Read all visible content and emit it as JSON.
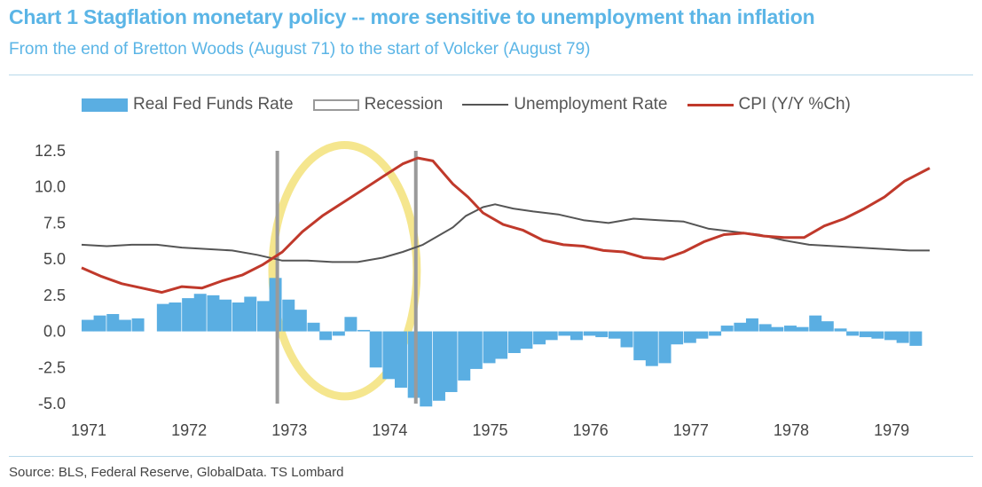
{
  "title": "Chart 1 Stagflation monetary policy -- more sensitive to unemployment than inflation",
  "subtitle": "From the end of Bretton Woods (August 71) to the start of Volcker (August 79)",
  "source": "Source: BLS, Federal Reserve, GlobalData. TS Lombard",
  "colors": {
    "title": "#5bb5e6",
    "real_fed_funds": "#5aaee2",
    "unemployment": "#555555",
    "cpi": "#c0392b",
    "recession": "#9a9a9a",
    "highlight": "#f3e27a"
  },
  "legend": [
    {
      "label": "Real Fed Funds Rate",
      "swatch": "bar"
    },
    {
      "label": "Recession",
      "swatch": "recession"
    },
    {
      "label": "Unemployment Rate",
      "swatch": "line"
    },
    {
      "label": "CPI (Y/Y %Ch)",
      "swatch": "line-red"
    }
  ],
  "chart_data": {
    "type": "bar+line",
    "xlim": [
      1971.0,
      1979.45
    ],
    "ylim": [
      -5.0,
      12.5
    ],
    "yticks": [
      "12.5",
      "10.0",
      "7.5",
      "5.0",
      "2.5",
      "0.0",
      "-2.5",
      "-5.0"
    ],
    "ytick_values": [
      12.5,
      10.0,
      7.5,
      5.0,
      2.5,
      0.0,
      -2.5,
      -5.0
    ],
    "xticks": [
      "1971",
      "1972",
      "1973",
      "1974",
      "1975",
      "1976",
      "1977",
      "1978",
      "1979"
    ],
    "xtick_values": [
      1971,
      1972,
      1973,
      1974,
      1975,
      1976,
      1977,
      1978,
      1979
    ],
    "recession_lines": [
      1972.95,
      1974.33
    ],
    "highlight_ellipse": {
      "x_center": 1973.62,
      "y_center": 4.2,
      "x_radius": 0.72,
      "y_radius": 8.7
    },
    "grid": false,
    "legend_position": "top",
    "series": [
      {
        "name": "Real Fed Funds Rate",
        "type": "bar",
        "bar_width": 0.12,
        "points": [
          [
            1971.0,
            0.8
          ],
          [
            1971.12,
            1.1
          ],
          [
            1971.25,
            1.2
          ],
          [
            1971.37,
            0.8
          ],
          [
            1971.5,
            0.9
          ],
          [
            1971.62,
            0.0
          ],
          [
            1971.75,
            1.9
          ],
          [
            1971.87,
            2.0
          ],
          [
            1972.0,
            2.3
          ],
          [
            1972.12,
            2.6
          ],
          [
            1972.25,
            2.5
          ],
          [
            1972.37,
            2.2
          ],
          [
            1972.5,
            2.0
          ],
          [
            1972.62,
            2.4
          ],
          [
            1972.75,
            2.1
          ],
          [
            1972.87,
            3.7
          ],
          [
            1973.0,
            2.2
          ],
          [
            1973.12,
            1.5
          ],
          [
            1973.25,
            0.6
          ],
          [
            1973.37,
            -0.6
          ],
          [
            1973.5,
            -0.3
          ],
          [
            1973.62,
            1.0
          ],
          [
            1973.75,
            0.1
          ],
          [
            1973.87,
            -2.5
          ],
          [
            1974.0,
            -3.3
          ],
          [
            1974.12,
            -3.9
          ],
          [
            1974.25,
            -4.6
          ],
          [
            1974.37,
            -5.2
          ],
          [
            1974.5,
            -4.8
          ],
          [
            1974.62,
            -4.2
          ],
          [
            1974.75,
            -3.4
          ],
          [
            1974.87,
            -2.6
          ],
          [
            1975.0,
            -2.2
          ],
          [
            1975.12,
            -1.9
          ],
          [
            1975.25,
            -1.5
          ],
          [
            1975.37,
            -1.2
          ],
          [
            1975.5,
            -0.9
          ],
          [
            1975.62,
            -0.6
          ],
          [
            1975.75,
            -0.3
          ],
          [
            1975.87,
            -0.6
          ],
          [
            1976.0,
            -0.3
          ],
          [
            1976.12,
            -0.4
          ],
          [
            1976.25,
            -0.5
          ],
          [
            1976.37,
            -1.1
          ],
          [
            1976.5,
            -2.0
          ],
          [
            1976.62,
            -2.4
          ],
          [
            1976.75,
            -2.2
          ],
          [
            1976.87,
            -0.9
          ],
          [
            1977.0,
            -0.8
          ],
          [
            1977.12,
            -0.5
          ],
          [
            1977.25,
            -0.3
          ],
          [
            1977.37,
            0.4
          ],
          [
            1977.5,
            0.6
          ],
          [
            1977.62,
            0.9
          ],
          [
            1977.75,
            0.5
          ],
          [
            1977.87,
            0.3
          ],
          [
            1978.0,
            0.4
          ],
          [
            1978.12,
            0.3
          ],
          [
            1978.25,
            1.1
          ],
          [
            1978.37,
            0.7
          ],
          [
            1978.5,
            0.2
          ],
          [
            1978.62,
            -0.3
          ],
          [
            1978.75,
            -0.4
          ],
          [
            1978.87,
            -0.5
          ],
          [
            1979.0,
            -0.6
          ],
          [
            1979.12,
            -0.8
          ],
          [
            1979.25,
            -1.0
          ]
        ]
      },
      {
        "name": "Unemployment Rate",
        "type": "line",
        "points": [
          [
            1971.0,
            6.0
          ],
          [
            1971.25,
            5.9
          ],
          [
            1971.5,
            6.0
          ],
          [
            1971.75,
            6.0
          ],
          [
            1972.0,
            5.8
          ],
          [
            1972.25,
            5.7
          ],
          [
            1972.5,
            5.6
          ],
          [
            1972.75,
            5.3
          ],
          [
            1973.0,
            4.9
          ],
          [
            1973.25,
            4.9
          ],
          [
            1973.5,
            4.8
          ],
          [
            1973.75,
            4.8
          ],
          [
            1974.0,
            5.1
          ],
          [
            1974.2,
            5.5
          ],
          [
            1974.4,
            6.0
          ],
          [
            1974.55,
            6.6
          ],
          [
            1974.7,
            7.2
          ],
          [
            1974.83,
            8.0
          ],
          [
            1975.0,
            8.6
          ],
          [
            1975.12,
            8.8
          ],
          [
            1975.3,
            8.5
          ],
          [
            1975.5,
            8.3
          ],
          [
            1975.75,
            8.1
          ],
          [
            1976.0,
            7.7
          ],
          [
            1976.25,
            7.5
          ],
          [
            1976.5,
            7.8
          ],
          [
            1976.75,
            7.7
          ],
          [
            1977.0,
            7.6
          ],
          [
            1977.25,
            7.1
          ],
          [
            1977.5,
            6.9
          ],
          [
            1977.75,
            6.7
          ],
          [
            1978.0,
            6.3
          ],
          [
            1978.25,
            6.0
          ],
          [
            1978.5,
            5.9
          ],
          [
            1978.75,
            5.8
          ],
          [
            1979.0,
            5.7
          ],
          [
            1979.25,
            5.6
          ],
          [
            1979.45,
            5.6
          ]
        ]
      },
      {
        "name": "CPI (Y/Y %Ch)",
        "type": "line",
        "points": [
          [
            1971.0,
            4.4
          ],
          [
            1971.2,
            3.8
          ],
          [
            1971.4,
            3.3
          ],
          [
            1971.6,
            3.0
          ],
          [
            1971.8,
            2.7
          ],
          [
            1972.0,
            3.1
          ],
          [
            1972.2,
            3.0
          ],
          [
            1972.4,
            3.5
          ],
          [
            1972.6,
            3.9
          ],
          [
            1972.8,
            4.6
          ],
          [
            1973.0,
            5.5
          ],
          [
            1973.2,
            6.9
          ],
          [
            1973.4,
            8.0
          ],
          [
            1973.6,
            8.9
          ],
          [
            1973.8,
            9.8
          ],
          [
            1974.0,
            10.7
          ],
          [
            1974.2,
            11.6
          ],
          [
            1974.35,
            12.0
          ],
          [
            1974.5,
            11.8
          ],
          [
            1974.7,
            10.2
          ],
          [
            1974.85,
            9.3
          ],
          [
            1975.0,
            8.2
          ],
          [
            1975.2,
            7.4
          ],
          [
            1975.4,
            7.0
          ],
          [
            1975.6,
            6.3
          ],
          [
            1975.8,
            6.0
          ],
          [
            1976.0,
            5.9
          ],
          [
            1976.2,
            5.6
          ],
          [
            1976.4,
            5.5
          ],
          [
            1976.6,
            5.1
          ],
          [
            1976.8,
            5.0
          ],
          [
            1977.0,
            5.5
          ],
          [
            1977.2,
            6.2
          ],
          [
            1977.4,
            6.7
          ],
          [
            1977.6,
            6.8
          ],
          [
            1977.8,
            6.6
          ],
          [
            1978.0,
            6.5
          ],
          [
            1978.2,
            6.5
          ],
          [
            1978.4,
            7.3
          ],
          [
            1978.6,
            7.8
          ],
          [
            1978.8,
            8.5
          ],
          [
            1979.0,
            9.3
          ],
          [
            1979.2,
            10.4
          ],
          [
            1979.45,
            11.3
          ]
        ]
      }
    ]
  }
}
